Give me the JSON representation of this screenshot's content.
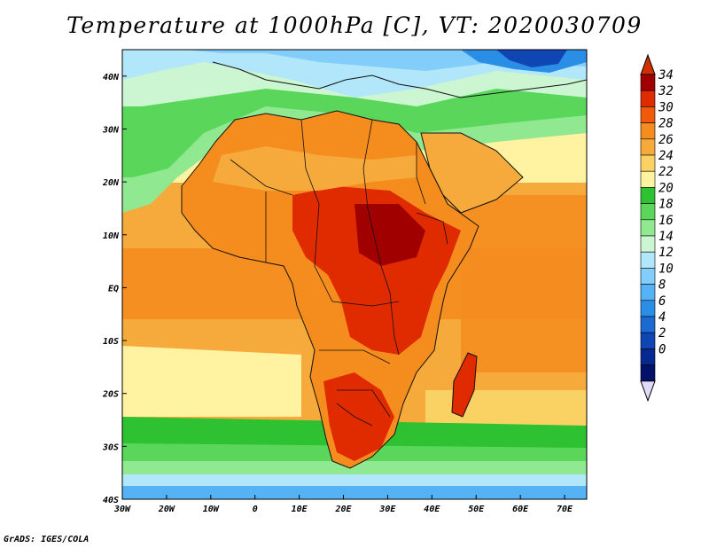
{
  "title": "Temperature at 1000hPa [C], VT: 2020030709",
  "credit": "GrADS: IGES/COLA",
  "map": {
    "lon_range": [
      -30,
      75
    ],
    "lat_range": [
      -40,
      45
    ],
    "x_ticks": [
      {
        "lon": -30,
        "label": "30W"
      },
      {
        "lon": -20,
        "label": "20W"
      },
      {
        "lon": -10,
        "label": "10W"
      },
      {
        "lon": 0,
        "label": "0"
      },
      {
        "lon": 10,
        "label": "10E"
      },
      {
        "lon": 20,
        "label": "20E"
      },
      {
        "lon": 30,
        "label": "30E"
      },
      {
        "lon": 40,
        "label": "40E"
      },
      {
        "lon": 50,
        "label": "50E"
      },
      {
        "lon": 60,
        "label": "60E"
      },
      {
        "lon": 70,
        "label": "70E"
      }
    ],
    "y_ticks": [
      {
        "lat": 40,
        "label": "40N"
      },
      {
        "lat": 30,
        "label": "30N"
      },
      {
        "lat": 20,
        "label": "20N"
      },
      {
        "lat": 10,
        "label": "10N"
      },
      {
        "lat": 0,
        "label": "EQ"
      },
      {
        "lat": -10,
        "label": "10S"
      },
      {
        "lat": -20,
        "label": "20S"
      },
      {
        "lat": -30,
        "label": "30S"
      },
      {
        "lat": -40,
        "label": "40S"
      }
    ]
  },
  "colorbar": {
    "labels": [
      "34",
      "32",
      "30",
      "28",
      "26",
      "24",
      "22",
      "20",
      "18",
      "16",
      "14",
      "12",
      "10",
      "8",
      "6",
      "4",
      "2",
      "0"
    ],
    "colors": [
      "#a00000",
      "#e02a00",
      "#f05a0a",
      "#f58c1e",
      "#f7aa3c",
      "#fad264",
      "#fff2a0",
      "#2ec232",
      "#5ad75a",
      "#90e890",
      "#ccf6d2",
      "#b2e6fa",
      "#82cdfa",
      "#55b2f5",
      "#2b8ee6",
      "#1b6ad2",
      "#0f46b4",
      "#082891",
      "#02126a"
    ],
    "top_color": "#d03000",
    "bottom_color": "#e0dcf8"
  },
  "bands": [
    {
      "name": "cold-south-1",
      "color": "#1b6ad2",
      "points": [
        [
          -30,
          -40
        ],
        [
          75,
          -40
        ],
        [
          75,
          -39
        ],
        [
          -30,
          -39
        ]
      ]
    }
  ]
}
